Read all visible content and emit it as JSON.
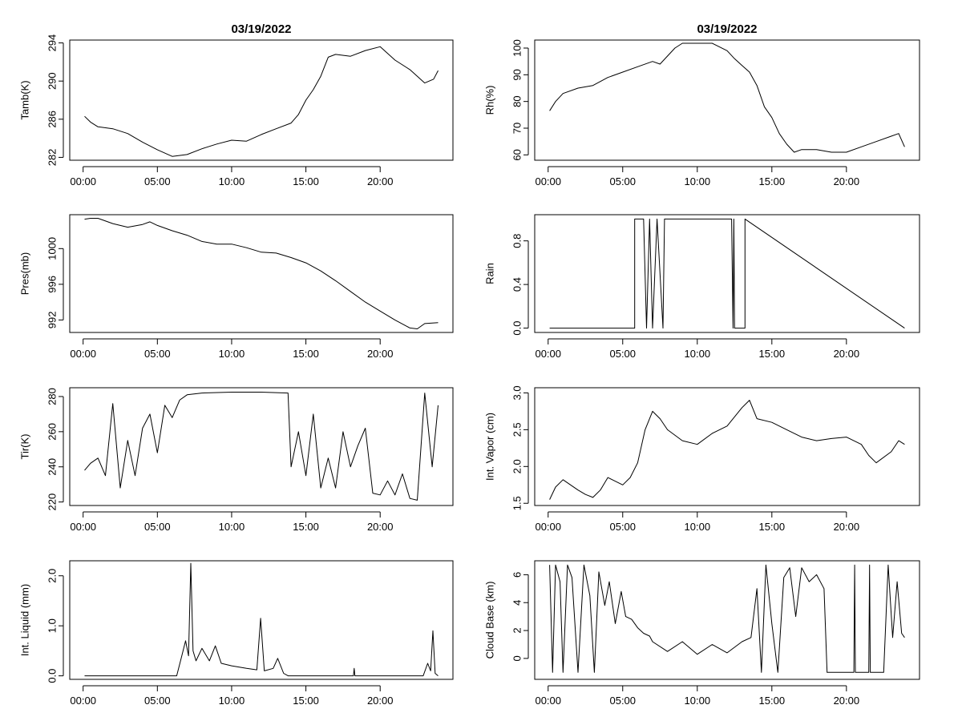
{
  "figure": {
    "x_ticks": [
      "00:00",
      "05:00",
      "10:00",
      "15:00",
      "20:00"
    ],
    "x_tick_hours": [
      0,
      5,
      10,
      15,
      20
    ],
    "x_range_hours": [
      -0.9,
      24.9
    ]
  },
  "chart_data": [
    {
      "id": "tamb",
      "type": "line",
      "title": "03/19/2022",
      "ylabel": "Tamb(K)",
      "ylim": [
        281.7,
        294.3
      ],
      "yticks": [
        282,
        286,
        290,
        294
      ],
      "ytick_labels": [
        "282",
        "286",
        "290",
        "294"
      ],
      "series": [
        {
          "name": "Tamb",
          "x": [
            0.1,
            0.5,
            1,
            2,
            3,
            4,
            5,
            6,
            7,
            8,
            9,
            10,
            11,
            12,
            13,
            14,
            14.5,
            15,
            15.5,
            16,
            16.5,
            17,
            18,
            19,
            20,
            21,
            22,
            23,
            23.6,
            23.9
          ],
          "y": [
            286.3,
            285.7,
            285.2,
            285.0,
            284.5,
            283.6,
            282.8,
            282.1,
            282.3,
            282.9,
            283.4,
            283.8,
            283.7,
            284.4,
            285.0,
            285.6,
            286.5,
            288.0,
            289.1,
            290.5,
            292.5,
            292.8,
            292.6,
            293.2,
            293.6,
            292.2,
            291.2,
            289.8,
            290.2,
            291.1
          ]
        }
      ]
    },
    {
      "id": "rh",
      "type": "line",
      "title": "03/19/2022",
      "ylabel": "Rh(%)",
      "ylim": [
        58,
        103
      ],
      "yticks": [
        60,
        70,
        80,
        90,
        100
      ],
      "ytick_labels": [
        "60",
        "70",
        "80",
        "90",
        "100"
      ],
      "series": [
        {
          "name": "Rh",
          "x": [
            0.1,
            0.5,
            1,
            2,
            3,
            4,
            5,
            6,
            7,
            7.5,
            8,
            8.5,
            9,
            9.5,
            10,
            11,
            12,
            12.5,
            13,
            13.5,
            14,
            14.5,
            15,
            15.5,
            16,
            16.5,
            17,
            18,
            19,
            20,
            21,
            22,
            23,
            23.5,
            23.9
          ],
          "y": [
            76.5,
            80,
            83,
            85,
            86,
            89,
            91,
            93,
            95,
            94,
            97,
            100,
            101.8,
            101.8,
            101.8,
            101.8,
            99,
            96,
            93.5,
            91,
            86,
            78,
            74,
            68,
            64,
            61,
            62,
            62,
            61,
            61,
            63,
            65,
            67,
            68,
            63
          ]
        }
      ]
    },
    {
      "id": "pres",
      "type": "line",
      "ylabel": "Pres(mb)",
      "ylim": [
        990.6,
        1003.8
      ],
      "yticks": [
        992,
        996,
        1000
      ],
      "ytick_labels": [
        "992",
        "996",
        "1000"
      ],
      "series": [
        {
          "name": "Pres",
          "x": [
            0.1,
            0.5,
            1,
            2,
            3,
            4,
            4.5,
            5,
            6,
            7,
            8,
            9,
            10,
            11,
            12,
            13,
            14,
            15,
            16,
            17,
            18,
            19,
            20,
            21,
            22,
            22.5,
            23,
            23.9
          ],
          "y": [
            1003.3,
            1003.4,
            1003.4,
            1002.8,
            1002.4,
            1002.7,
            1003.0,
            1002.6,
            1002.0,
            1001.5,
            1000.8,
            1000.5,
            1000.5,
            1000.1,
            999.6,
            999.5,
            999.0,
            998.4,
            997.5,
            996.4,
            995.2,
            994.0,
            993.0,
            992.0,
            991.1,
            991.0,
            991.6,
            991.7
          ]
        }
      ]
    },
    {
      "id": "rain",
      "type": "area",
      "ylabel": "Rain",
      "ylim": [
        -0.04,
        1.04
      ],
      "yticks": [
        0.0,
        0.4,
        0.8
      ],
      "ytick_labels": [
        "0.0",
        "0.4",
        "0.8"
      ],
      "series": [
        {
          "name": "Rain",
          "x": [
            0.1,
            5.8,
            5.8,
            6.4,
            6.6,
            6.8,
            7.0,
            7.3,
            7.7,
            7.8,
            12.3,
            12.4,
            12.45,
            12.5,
            13.2,
            13.2,
            23.9
          ],
          "y": [
            0,
            0,
            1,
            1,
            0,
            1,
            0,
            1,
            0,
            1,
            1,
            0,
            1,
            0,
            0,
            1,
            0
          ]
        }
      ]
    },
    {
      "id": "tir",
      "type": "line",
      "ylabel": "Tir(K)",
      "ylim": [
        218,
        285
      ],
      "yticks": [
        220,
        240,
        260,
        280
      ],
      "ytick_labels": [
        "220",
        "240",
        "260",
        "280"
      ],
      "series": [
        {
          "name": "Tir",
          "x": [
            0.1,
            0.5,
            1,
            1.5,
            2,
            2.5,
            3,
            3.5,
            4,
            4.5,
            5,
            5.5,
            6,
            6.5,
            7,
            8,
            10,
            12,
            13.8,
            14,
            14.5,
            15,
            15.5,
            16,
            16.5,
            17,
            17.5,
            18,
            18.5,
            19,
            19.5,
            20,
            20.5,
            21,
            21.5,
            22,
            22.5,
            23,
            23.5,
            23.9
          ],
          "y": [
            238,
            242,
            245,
            235,
            276,
            228,
            255,
            235,
            262,
            270,
            248,
            275,
            268,
            278,
            281,
            282,
            282.5,
            282.5,
            282,
            240,
            260,
            235,
            270,
            228,
            245,
            228,
            260,
            240,
            252,
            262,
            225,
            224,
            232,
            224,
            236,
            222,
            221,
            282,
            240,
            275
          ]
        }
      ]
    },
    {
      "id": "vapor",
      "type": "line",
      "ylabel": "Int. Vapor (cm)",
      "ylim": [
        1.47,
        3.07
      ],
      "yticks": [
        1.5,
        2.0,
        2.5,
        3.0
      ],
      "ytick_labels": [
        "1.5",
        "2.0",
        "2.5",
        "3.0"
      ],
      "series": [
        {
          "name": "Int. Vapor",
          "x": [
            0.1,
            0.5,
            1,
            1.5,
            2,
            2.5,
            3,
            3.5,
            4,
            4.5,
            5,
            5.5,
            6,
            6.5,
            7,
            7.5,
            8,
            9,
            10,
            11,
            12,
            13,
            13.5,
            14,
            15,
            16,
            17,
            18,
            19,
            20,
            21,
            21.5,
            22,
            23,
            23.5,
            23.9
          ],
          "y": [
            1.55,
            1.72,
            1.82,
            1.75,
            1.68,
            1.62,
            1.58,
            1.68,
            1.85,
            1.8,
            1.75,
            1.85,
            2.05,
            2.5,
            2.75,
            2.65,
            2.5,
            2.35,
            2.3,
            2.45,
            2.55,
            2.8,
            2.9,
            2.65,
            2.6,
            2.5,
            2.4,
            2.35,
            2.38,
            2.4,
            2.3,
            2.15,
            2.05,
            2.2,
            2.35,
            2.3
          ]
        }
      ]
    },
    {
      "id": "liquid",
      "type": "line",
      "ylabel": "Int. Liquid (mm)",
      "ylim": [
        -0.07,
        2.3
      ],
      "yticks": [
        0.0,
        1.0,
        2.0
      ],
      "ytick_labels": [
        "0.0",
        "1.0",
        "2.0"
      ],
      "series": [
        {
          "name": "Int. Liquid",
          "x": [
            0.1,
            6.3,
            6.6,
            6.9,
            7.1,
            7.25,
            7.4,
            7.6,
            8,
            8.5,
            8.9,
            9.3,
            10,
            11,
            11.7,
            11.95,
            12.2,
            12.8,
            13.1,
            13.5,
            13.8,
            18.2,
            18.25,
            18.3,
            22.9,
            23.2,
            23.4,
            23.55,
            23.7,
            23.9
          ],
          "y": [
            0,
            0,
            0.35,
            0.7,
            0.4,
            2.25,
            0.5,
            0.3,
            0.55,
            0.3,
            0.6,
            0.25,
            0.2,
            0.15,
            0.12,
            1.15,
            0.1,
            0.15,
            0.35,
            0.05,
            0,
            0,
            0.15,
            0,
            0,
            0.25,
            0.1,
            0.9,
            0.05,
            0
          ]
        }
      ]
    },
    {
      "id": "cloudbase",
      "type": "line",
      "ylabel": "Cloud Base (km)",
      "ylim": [
        -1.5,
        7.0
      ],
      "yticks": [
        0,
        2,
        4,
        6
      ],
      "ytick_labels": [
        "0",
        "2",
        "4",
        "6"
      ],
      "series": [
        {
          "name": "Cloud Base",
          "x": [
            0.1,
            0.3,
            0.5,
            0.8,
            1.0,
            1.3,
            1.6,
            2.0,
            2.4,
            2.8,
            3.1,
            3.4,
            3.8,
            4.1,
            4.5,
            4.9,
            5.2,
            5.6,
            6.0,
            6.4,
            6.8,
            7.0,
            8,
            9,
            10,
            11,
            12,
            13,
            13.6,
            14.0,
            14.3,
            14.6,
            15.0,
            15.4,
            15.8,
            16.2,
            16.6,
            17.0,
            17.5,
            18.0,
            18.5,
            18.7,
            20.5,
            20.55,
            20.6,
            21.5,
            21.55,
            21.6,
            22.5,
            22.8,
            23.1,
            23.4,
            23.7,
            23.9
          ],
          "y": [
            6.7,
            -1,
            6.7,
            5.5,
            -1,
            6.7,
            5.8,
            -1,
            6.7,
            4.5,
            -1,
            6.2,
            3.8,
            5.5,
            2.5,
            4.8,
            3.0,
            2.8,
            2.2,
            1.8,
            1.6,
            1.2,
            0.5,
            1.2,
            0.3,
            1.0,
            0.4,
            1.2,
            1.5,
            5.0,
            -1,
            6.7,
            2.5,
            -1,
            5.8,
            6.5,
            3.0,
            6.5,
            5.5,
            6.0,
            5.0,
            -1,
            -1,
            6.7,
            -1,
            -1,
            6.7,
            -1,
            -1,
            6.7,
            1.5,
            5.5,
            1.8,
            1.5
          ]
        }
      ]
    }
  ]
}
